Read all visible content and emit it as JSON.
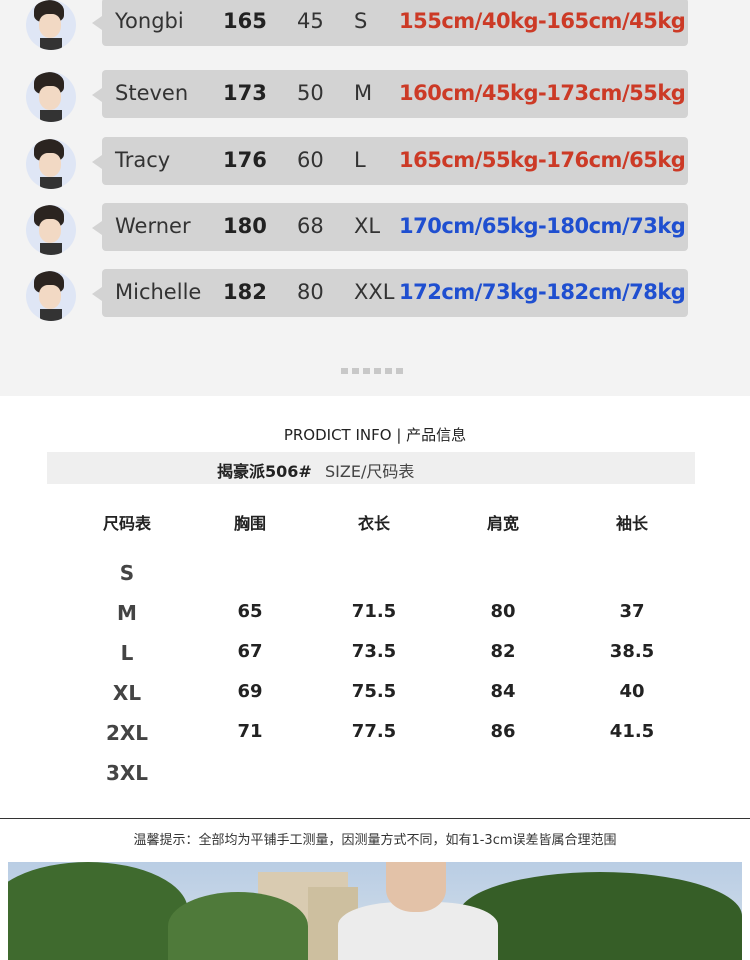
{
  "reference_rows": [
    {
      "name": "Yongbi",
      "height": "165",
      "weight": "45",
      "size": "S",
      "range": "155cm/40kg-165cm/45kg",
      "color": "#cc3a26"
    },
    {
      "name": "Steven",
      "height": "173",
      "weight": "50",
      "size": "M",
      "range": "160cm/45kg-173cm/55kg",
      "color": "#cc3a26"
    },
    {
      "name": "Tracy",
      "height": "176",
      "weight": "60",
      "size": "L",
      "range": "165cm/55kg-176cm/65kg",
      "color": "#cc3a26"
    },
    {
      "name": "Werner",
      "height": "180",
      "weight": "68",
      "size": "XL",
      "range": "170cm/65kg-180cm/73kg",
      "color": "#1f4fd0"
    },
    {
      "name": "Michelle",
      "height": "182",
      "weight": "80",
      "size": "XXL",
      "range": "172cm/73kg-182cm/78kg",
      "color": "#1f4fd0"
    }
  ],
  "product_info": {
    "title": "PRODICT INFO | 产品信息",
    "model": "揭豪派506#",
    "subtitle": "SIZE/尺码表"
  },
  "size_table": {
    "headers": [
      "尺码表",
      "胸围",
      "衣长",
      "肩宽",
      "袖长"
    ],
    "rows": [
      [
        "S",
        "",
        "",
        "",
        ""
      ],
      [
        "M",
        "65",
        "71.5",
        "80",
        "37"
      ],
      [
        "L",
        "67",
        "73.5",
        "82",
        "38.5"
      ],
      [
        "XL",
        "69",
        "75.5",
        "84",
        "40"
      ],
      [
        "2XL",
        "71",
        "77.5",
        "86",
        "41.5"
      ],
      [
        "3XL",
        "",
        "",
        "",
        ""
      ]
    ]
  },
  "note": "温馨提示：全部均为平铺手工测量，因测量方式不同，如有1-3cm误差皆属合理范围"
}
